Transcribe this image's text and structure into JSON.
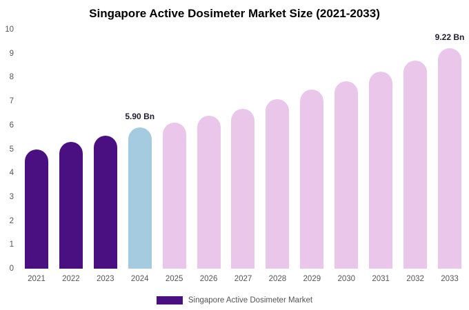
{
  "chart_data": {
    "type": "bar",
    "title": "Singapore Active Dosimeter Market Size (2021-2033)",
    "categories": [
      "2021",
      "2022",
      "2023",
      "2024",
      "2025",
      "2026",
      "2027",
      "2028",
      "2029",
      "2030",
      "2031",
      "2032",
      "2033"
    ],
    "values": [
      5.0,
      5.3,
      5.55,
      5.9,
      6.1,
      6.4,
      6.7,
      7.1,
      7.5,
      7.85,
      8.25,
      8.7,
      9.22
    ],
    "ylim": [
      0,
      10
    ],
    "yticks": [
      0,
      1,
      2,
      3,
      4,
      5,
      6,
      7,
      8,
      9,
      10
    ],
    "xlabel": "",
    "ylabel": "",
    "grid": false,
    "legend": [
      "Singapore Active Dosimeter Market"
    ],
    "legend_position": "bottom",
    "bar_colors": [
      "#4a0f80",
      "#4a0f80",
      "#4a0f80",
      "#a4cbe0",
      "#e9c6ea",
      "#e9c6ea",
      "#e9c6ea",
      "#e9c6ea",
      "#e9c6ea",
      "#e9c6ea",
      "#e9c6ea",
      "#e9c6ea",
      "#e9c6ea"
    ],
    "annotations": [
      {
        "x": "2024",
        "text": "5.90 Bn"
      },
      {
        "x": "2033",
        "text": "9.22 Bn"
      }
    ],
    "colors": {
      "historical": "#4a0f80",
      "base_year": "#a4cbe0",
      "forecast": "#e9c6ea",
      "legend_swatch": "#4a0f80",
      "background": "#ffffff"
    }
  }
}
